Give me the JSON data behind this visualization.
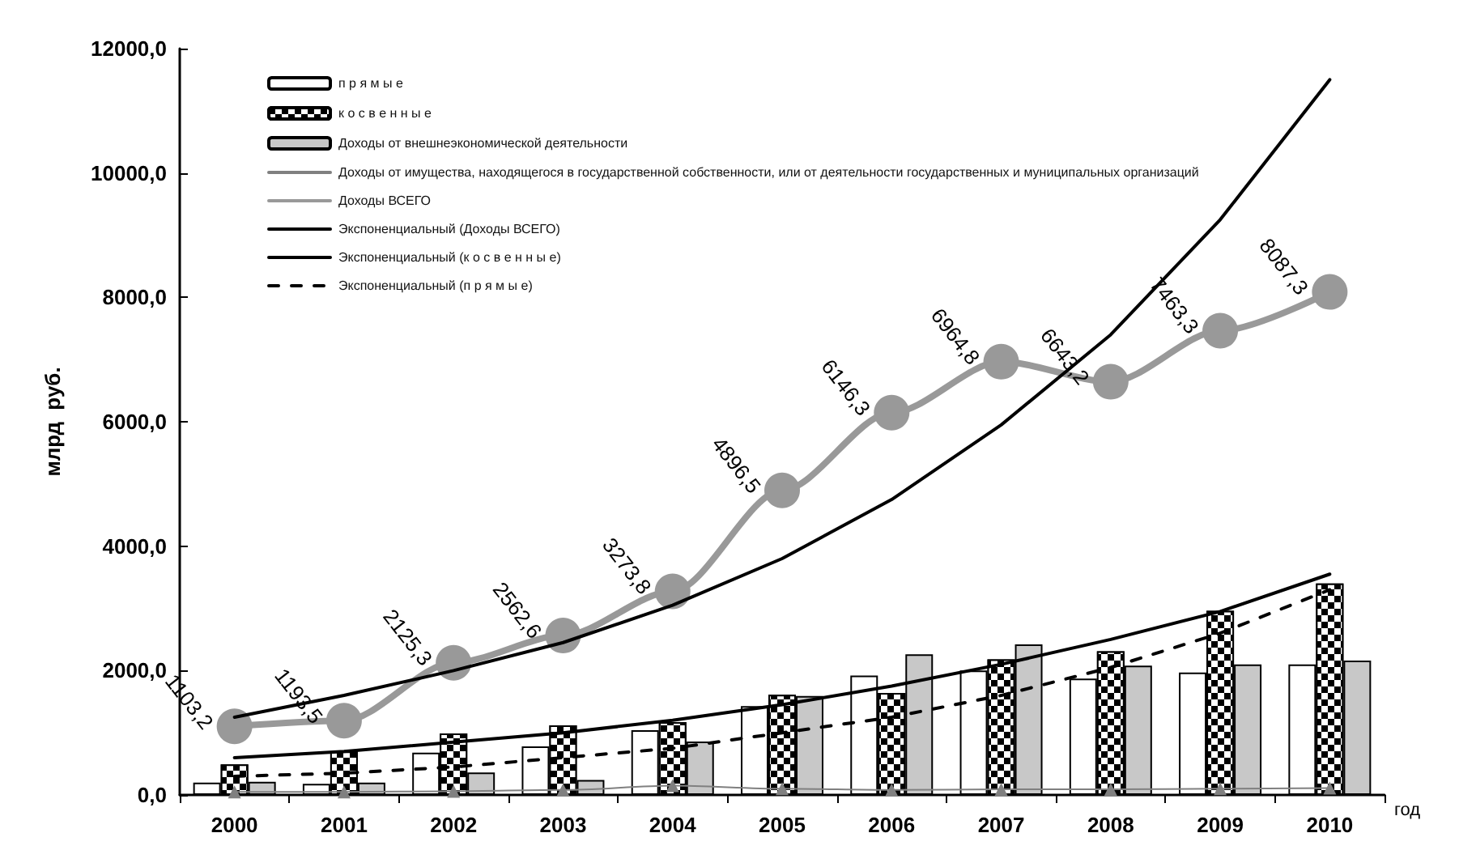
{
  "chart_data": {
    "type": "bar",
    "xlabel": "год",
    "ylabel": "млрд  руб.",
    "categories": [
      "2000",
      "2001",
      "2002",
      "2003",
      "2004",
      "2005",
      "2006",
      "2007",
      "2008",
      "2009",
      "2010"
    ],
    "series": [
      {
        "name": "п р я м ы е",
        "color": "#ffffff",
        "values": [
          200,
          180,
          680,
          780,
          1040,
          1430,
          1920,
          2000,
          1870,
          1970,
          2100
        ]
      },
      {
        "name": "к о с в е н н ы е",
        "color": "#000000",
        "values": [
          490,
          700,
          990,
          1120,
          1170,
          1610,
          1640,
          2180,
          2310,
          2960,
          3400
        ]
      },
      {
        "name": "Доходы от внешнеэкономической деятельности",
        "color": "#c8c8c8",
        "values": [
          210,
          200,
          360,
          240,
          860,
          1590,
          2260,
          2420,
          2080,
          2100,
          2160
        ]
      },
      {
        "name": "Доходы от имущества, находящегося в государственной собственности, или от деятельности государственных и муниципальных организаций",
        "type": "line",
        "marker": "triangle",
        "color": "#808080",
        "values": [
          50,
          50,
          60,
          80,
          150,
          100,
          80,
          90,
          90,
          100,
          110
        ]
      },
      {
        "name": "Доходы ВСЕГО",
        "type": "line",
        "marker": "circle",
        "color": "#999999",
        "values": [
          1103.2,
          1193.5,
          2125.3,
          2562.6,
          3273.8,
          4896.5,
          6146.3,
          6964.8,
          6643.2,
          7463.3,
          8087.3
        ],
        "value_labels": [
          "1103,2",
          "1193,5",
          "2125,3",
          "2562,6",
          "3273,8",
          "4896,5",
          "6146,3",
          "6964,8",
          "6643,2",
          "7463,3",
          "8087,3"
        ]
      },
      {
        "name": "Экспоненциальный (Доходы ВСЕГО)",
        "type": "line",
        "marker": "none",
        "line_style": "solid",
        "color": "#000000",
        "values": [
          1250,
          1600,
          2000,
          2450,
          3050,
          3800,
          4750,
          5950,
          7400,
          9250,
          11500
        ]
      },
      {
        "name": "Экспоненциальный (к о с в е н н ы е)",
        "type": "line",
        "marker": "none",
        "line_style": "solid",
        "color": "#000000",
        "values": [
          600,
          700,
          850,
          1000,
          1200,
          1450,
          1750,
          2100,
          2500,
          2950,
          3550
        ]
      },
      {
        "name": "Экспоненциальный (п р я м ы е)",
        "type": "line",
        "marker": "none",
        "line_style": "dashed",
        "color": "#000000",
        "values": [
          300,
          350,
          450,
          600,
          750,
          1000,
          1250,
          1600,
          2050,
          2600,
          3300
        ]
      }
    ],
    "ylim": [
      0,
      12000
    ],
    "yticks": [
      {
        "value": 0,
        "label": "0,0"
      },
      {
        "value": 2000,
        "label": "2000,0"
      },
      {
        "value": 4000,
        "label": "4000,0"
      },
      {
        "value": 6000,
        "label": "6000,0"
      },
      {
        "value": 8000,
        "label": "8000,0"
      },
      {
        "value": 10000,
        "label": "10000,0"
      },
      {
        "value": 12000,
        "label": "12000,0"
      }
    ],
    "grid": false,
    "legend": "top left"
  }
}
